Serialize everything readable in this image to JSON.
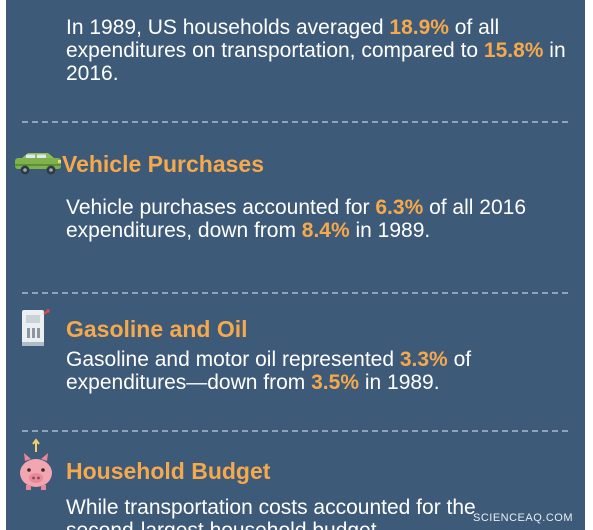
{
  "intro": {
    "p1": "In 1989, US households averaged ",
    "v1": "18.9%",
    "p2": " of all expenditures on transportation, compared to ",
    "v2": "15.8%",
    "p3": " in 2016."
  },
  "sections": {
    "vehicle": {
      "icon": "car-icon",
      "title": "Vehicle Purchases",
      "p1": "Vehicle purchases accounted for ",
      "v1": "6.3%",
      "p2": " of all 2016 expenditures, down from ",
      "v2": "8.4%",
      "p3": " in 1989."
    },
    "gasoline": {
      "icon": "gas-pump-icon",
      "title": "Gasoline and Oil",
      "p1": "Gasoline and motor oil represented ",
      "v1": "3.3%",
      "p2": " of expenditures—down from ",
      "v2": "3.5%",
      "p3": " in 1989."
    },
    "budget": {
      "icon": "piggy-bank-icon",
      "title": "Household Budget",
      "p1": "While transportation costs accounted for the second-largest household budget"
    }
  },
  "watermark": "SCIENCEAQ.COM",
  "colors": {
    "background": "#3d5a78",
    "highlight": "#f5a94c",
    "text": "#ffffff",
    "divider": "#8ea4ba"
  }
}
